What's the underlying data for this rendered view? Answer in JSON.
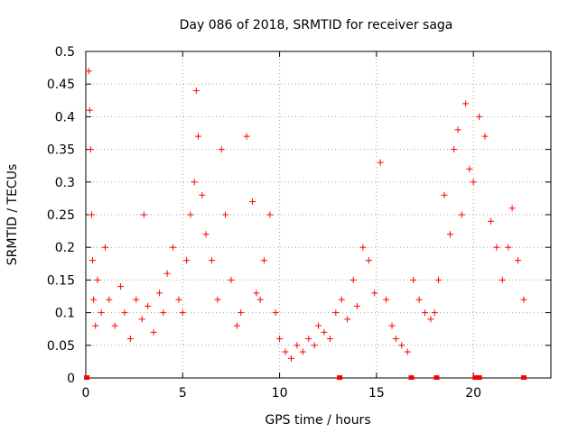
{
  "chart_data": {
    "type": "scatter",
    "title": "Day 086 of 2018, SRMTID for receiver saga",
    "xlabel": "GPS time / hours",
    "ylabel": "SRMTID / TECUs",
    "xlim": [
      0,
      24
    ],
    "ylim": [
      0,
      0.5
    ],
    "x_ticks": [
      0,
      5,
      10,
      15,
      20
    ],
    "x_tick_labels": [
      "0",
      "5",
      "10",
      "15",
      "20"
    ],
    "y_ticks": [
      0,
      0.05,
      0.1,
      0.15,
      0.2,
      0.25,
      0.3,
      0.35,
      0.4,
      0.45,
      0.5
    ],
    "y_tick_labels": [
      "0",
      "0.05",
      "0.1",
      "0.15",
      "0.2",
      "0.25",
      "0.3",
      "0.35",
      "0.4",
      "0.45",
      "0.5"
    ],
    "grid": true,
    "marker": "plus",
    "series_color": "#ff0000",
    "series": [
      {
        "name": "SRMTID",
        "x": [
          0.15,
          0.2,
          0.25,
          0.3,
          0.35,
          0.4,
          0.5,
          0.6,
          0.8,
          1.0,
          1.2,
          1.5,
          1.8,
          2.0,
          2.3,
          2.6,
          2.9,
          3.0,
          3.2,
          3.5,
          3.8,
          4.0,
          4.2,
          4.5,
          4.8,
          5.0,
          5.2,
          5.4,
          5.6,
          5.7,
          5.8,
          6.0,
          6.2,
          6.5,
          6.8,
          7.0,
          7.2,
          7.5,
          7.8,
          8.0,
          8.3,
          8.6,
          8.8,
          9.0,
          9.2,
          9.5,
          9.8,
          10.0,
          10.3,
          10.6,
          10.9,
          11.2,
          11.5,
          11.8,
          12.0,
          12.3,
          12.6,
          12.9,
          13.2,
          13.5,
          13.8,
          14.0,
          14.3,
          14.6,
          14.9,
          15.2,
          15.5,
          15.8,
          16.0,
          16.3,
          16.6,
          16.9,
          17.2,
          17.5,
          17.8,
          18.0,
          18.2,
          18.5,
          18.8,
          19.0,
          19.2,
          19.4,
          19.6,
          19.8,
          20.0,
          20.3,
          20.6,
          20.9,
          21.2,
          21.5,
          21.8,
          22.0,
          22.3,
          22.6
        ],
        "y": [
          0.47,
          0.41,
          0.35,
          0.25,
          0.18,
          0.12,
          0.08,
          0.15,
          0.1,
          0.2,
          0.12,
          0.08,
          0.14,
          0.1,
          0.06,
          0.12,
          0.09,
          0.25,
          0.11,
          0.07,
          0.13,
          0.1,
          0.16,
          0.2,
          0.12,
          0.1,
          0.18,
          0.25,
          0.3,
          0.44,
          0.37,
          0.28,
          0.22,
          0.18,
          0.12,
          0.35,
          0.25,
          0.15,
          0.08,
          0.1,
          0.37,
          0.27,
          0.13,
          0.12,
          0.18,
          0.25,
          0.1,
          0.06,
          0.04,
          0.03,
          0.05,
          0.04,
          0.06,
          0.05,
          0.08,
          0.07,
          0.06,
          0.1,
          0.12,
          0.09,
          0.15,
          0.11,
          0.2,
          0.18,
          0.13,
          0.33,
          0.12,
          0.08,
          0.06,
          0.05,
          0.04,
          0.15,
          0.12,
          0.1,
          0.09,
          0.1,
          0.15,
          0.28,
          0.22,
          0.35,
          0.38,
          0.25,
          0.42,
          0.32,
          0.3,
          0.4,
          0.37,
          0.24,
          0.2,
          0.15,
          0.2,
          0.26,
          0.18,
          0.12
        ]
      }
    ],
    "baseline_markers_x": [
      0.05,
      13.1,
      16.8,
      18.1,
      20.1,
      20.3,
      22.6
    ]
  }
}
